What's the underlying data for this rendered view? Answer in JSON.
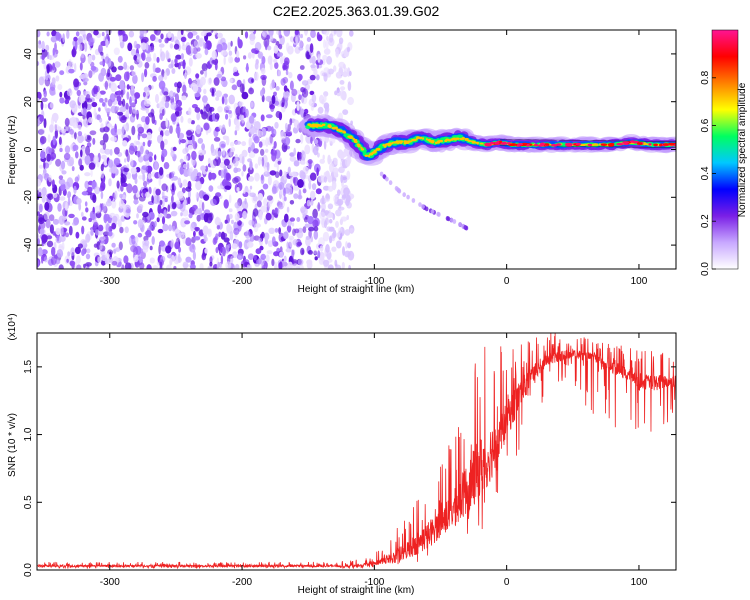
{
  "figure": {
    "title": "C2E2.2025.363.01.39.G02"
  },
  "chart_data": [
    {
      "type": "heatmap",
      "title": "C2E2.2025.363.01.39.G02",
      "xlabel": "Height of straight line (km)",
      "ylabel": "Frequency (Hz)",
      "xlim": [
        -355,
        128
      ],
      "ylim": [
        -50,
        50
      ],
      "x_ticks": [
        -300,
        -200,
        -100,
        0,
        100
      ],
      "y_ticks": [
        -40,
        -20,
        0,
        20,
        40
      ],
      "grid": false,
      "colorbar": {
        "label": "Normalized spectral amplitude",
        "range": [
          0,
          1
        ],
        "ticks": [
          0.0,
          0.2,
          0.4,
          0.6,
          0.8
        ],
        "colormap": [
          "#ffffff",
          "#c8a8ff",
          "#7a1fe6",
          "#0000ff",
          "#00c8ff",
          "#00ff60",
          "#ffff00",
          "#ff8000",
          "#ff0000",
          "#ff1493"
        ]
      },
      "features": {
        "noise_region_x": [
          -355,
          -125
        ],
        "main_band_points": [
          [
            -150,
            10
          ],
          [
            -135,
            10
          ],
          [
            -125,
            8
          ],
          [
            -115,
            4
          ],
          [
            -105,
            -3
          ],
          [
            -95,
            1
          ],
          [
            -85,
            3
          ],
          [
            -75,
            3
          ],
          [
            -65,
            5
          ],
          [
            -55,
            3
          ],
          [
            -45,
            4
          ],
          [
            -35,
            5
          ],
          [
            -25,
            3
          ],
          [
            -15,
            2
          ],
          [
            -5,
            3
          ],
          [
            5,
            2
          ],
          [
            20,
            2
          ],
          [
            40,
            2
          ],
          [
            60,
            2
          ],
          [
            80,
            2
          ],
          [
            95,
            3
          ],
          [
            110,
            2
          ],
          [
            128,
            2
          ]
        ],
        "secondary_branch_points": [
          [
            -95,
            -10
          ],
          [
            -80,
            -18
          ],
          [
            -60,
            -25
          ],
          [
            -40,
            -30
          ],
          [
            -30,
            -33
          ]
        ]
      }
    },
    {
      "type": "line",
      "xlabel": "Height of straight line (km)",
      "ylabel": "SNR (10 * v/v)",
      "y_scale_label": "(x10⁴)",
      "xlim": [
        -355,
        128
      ],
      "ylim": [
        0,
        1.75
      ],
      "x_ticks": [
        -300,
        -200,
        -100,
        0,
        100
      ],
      "y_ticks": [
        0.0,
        0.5,
        1.0,
        1.5
      ],
      "grid": false,
      "color": "#ee2222",
      "envelope": {
        "x": [
          -355,
          -200,
          -130,
          -110,
          -100,
          -90,
          -80,
          -70,
          -60,
          -50,
          -40,
          -30,
          -20,
          -10,
          0,
          10,
          20,
          30,
          40,
          50,
          60,
          70,
          80,
          90,
          100,
          110,
          128
        ],
        "baseline": [
          0.03,
          0.03,
          0.03,
          0.03,
          0.05,
          0.08,
          0.12,
          0.18,
          0.25,
          0.35,
          0.45,
          0.6,
          0.75,
          0.9,
          1.1,
          1.3,
          1.45,
          1.55,
          1.58,
          1.6,
          1.58,
          1.55,
          1.5,
          1.45,
          1.4,
          1.38,
          1.4
        ],
        "peak": [
          0.06,
          0.06,
          0.06,
          0.08,
          0.12,
          0.22,
          0.35,
          0.5,
          0.65,
          0.8,
          1.0,
          1.35,
          1.7,
          1.72,
          1.65,
          1.72,
          1.72,
          1.75,
          1.75,
          1.72,
          1.72,
          1.7,
          1.68,
          1.65,
          1.62,
          1.62,
          1.6
        ],
        "dips": [
          0.01,
          0.01,
          0.01,
          0.01,
          0.02,
          0.03,
          0.04,
          0.05,
          0.08,
          0.1,
          0.15,
          0.2,
          0.25,
          0.35,
          0.55,
          0.8,
          1.0,
          1.25,
          1.4,
          1.3,
          1.2,
          1.1,
          1.0,
          0.95,
          0.95,
          1.0,
          1.1
        ]
      }
    }
  ]
}
